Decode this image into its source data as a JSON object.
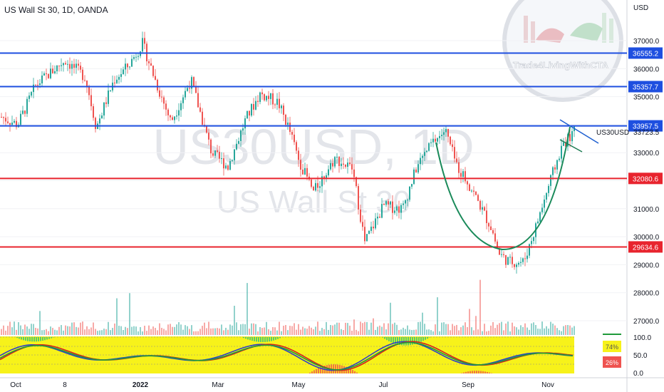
{
  "header": {
    "title": "US Wall St 30, 1D, OANDA"
  },
  "watermark": {
    "symbol": "US30USD, 1D",
    "name": "US Wall St 30"
  },
  "logo": {
    "text": "Trade4LivingWithCTA"
  },
  "colors": {
    "up": "#26a69a",
    "down": "#ef5350",
    "resistance": "#1e4fe0",
    "support": "#e8242e",
    "cup": "#1a8a5a",
    "wedge": "#1e5fd0",
    "osc_bg": "#f7f21a",
    "osc_k": "#2b40c8",
    "osc_d": "#d42020",
    "osc_smooth": "#1f9a3a"
  },
  "chart_data": {
    "type": "candlestick",
    "symbol": "US30USD",
    "timeframe": "1D",
    "source": "OANDA",
    "ylim": [
      26500,
      37900
    ],
    "y_ticks": [
      27000,
      28000,
      29000,
      30000,
      31000,
      32000,
      33000,
      34000,
      35000,
      36000,
      37000
    ],
    "y_unit": "USD",
    "x_tick_labels": [
      "Oct",
      "8",
      "2022",
      "Mar",
      "May",
      "Jul",
      "Sep",
      "Nov"
    ],
    "price_path": [
      [
        "Oct",
        34300
      ],
      [
        "8",
        36300
      ],
      [
        "mid-Nov",
        35600
      ],
      [
        "late-Dec",
        36100
      ],
      [
        "2022",
        36900
      ],
      [
        "mid-Jan",
        34600
      ],
      [
        "Feb",
        35600
      ],
      [
        "mid-Feb",
        33000
      ],
      [
        "Mar",
        33900
      ],
      [
        "Apr",
        35100
      ],
      [
        "May",
        32300
      ],
      [
        "mid-May",
        31300
      ],
      [
        "early-Jun",
        32800
      ],
      [
        "Jun",
        29800
      ],
      [
        "Jul",
        31100
      ],
      [
        "Aug",
        33800
      ],
      [
        "mid-Aug",
        34000
      ],
      [
        "Sep",
        31800
      ],
      [
        "late-Sep",
        29000
      ],
      [
        "Oct",
        30200
      ],
      [
        "Nov",
        33000
      ],
      [
        "last",
        33723.5
      ]
    ],
    "horizontal_levels": [
      {
        "value": 36555.2,
        "label": "36555.2",
        "role": "resistance"
      },
      {
        "value": 35357.7,
        "label": "35357.7",
        "role": "resistance"
      },
      {
        "value": 33957.5,
        "label": "33957.5",
        "role": "resistance"
      },
      {
        "value": 32080.6,
        "label": "32080.6",
        "role": "support"
      },
      {
        "value": 29634.6,
        "label": "29634.6",
        "role": "support"
      }
    ],
    "last_price": {
      "value": 33723.5,
      "label": "33723.5",
      "symbol_label": "US30USD"
    },
    "annotations": [
      "cup pattern (Aug–Nov)",
      "rising wedge / triangle at right edge"
    ],
    "oscillator": {
      "levels": [
        0.0,
        50.0,
        100.0
      ],
      "level_labels": [
        "0.0",
        "50.0",
        "100.0"
      ],
      "overbought_label": "74%",
      "oversold_label": "26%"
    }
  }
}
